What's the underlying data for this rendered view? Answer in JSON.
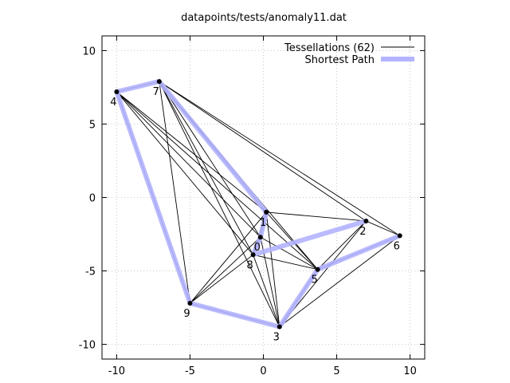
{
  "chart_data": {
    "type": "line",
    "title": "datapoints/tests/anomaly11.dat",
    "xlabel": "",
    "ylabel": "",
    "xlim": [
      -11,
      11
    ],
    "ylim": [
      -11,
      11
    ],
    "x_ticks": [
      -10,
      -5,
      0,
      5,
      10
    ],
    "y_ticks": [
      -10,
      -5,
      0,
      5,
      10
    ],
    "grid": true,
    "legend_position": "top-right",
    "points": [
      {
        "label": "0",
        "x": -0.2,
        "y": -2.7
      },
      {
        "label": "1",
        "x": 0.2,
        "y": -1.0
      },
      {
        "label": "2",
        "x": 7.0,
        "y": -1.6
      },
      {
        "label": "3",
        "x": 1.1,
        "y": -8.8
      },
      {
        "label": "4",
        "x": -10.0,
        "y": 7.2
      },
      {
        "label": "5",
        "x": 3.7,
        "y": -4.9
      },
      {
        "label": "6",
        "x": 9.3,
        "y": -2.6
      },
      {
        "label": "7",
        "x": -7.1,
        "y": 7.9
      },
      {
        "label": "8",
        "x": -0.7,
        "y": -3.9
      },
      {
        "label": "9",
        "x": -5.0,
        "y": -7.2
      }
    ],
    "series": [
      {
        "name": "Tessellations (62)",
        "color": "#000000",
        "edges": [
          [
            4,
            7
          ],
          [
            4,
            9
          ],
          [
            4,
            1
          ],
          [
            4,
            5
          ],
          [
            4,
            8
          ],
          [
            4,
            0
          ],
          [
            7,
            9
          ],
          [
            7,
            1
          ],
          [
            7,
            0
          ],
          [
            7,
            8
          ],
          [
            7,
            5
          ],
          [
            7,
            3
          ],
          [
            7,
            2
          ],
          [
            7,
            6
          ],
          [
            1,
            2
          ],
          [
            1,
            5
          ],
          [
            1,
            9
          ],
          [
            1,
            3
          ],
          [
            1,
            0
          ],
          [
            1,
            8
          ],
          [
            2,
            6
          ],
          [
            2,
            5
          ],
          [
            2,
            3
          ],
          [
            6,
            5
          ],
          [
            6,
            3
          ],
          [
            5,
            3
          ],
          [
            5,
            0
          ],
          [
            5,
            8
          ],
          [
            0,
            8
          ],
          [
            0,
            9
          ],
          [
            0,
            3
          ],
          [
            8,
            9
          ],
          [
            8,
            3
          ],
          [
            9,
            3
          ]
        ]
      },
      {
        "name": "Shortest Path",
        "color": "#b3b3ff",
        "path": [
          2,
          8,
          0,
          1,
          7,
          4,
          9,
          3,
          5,
          6
        ]
      }
    ]
  }
}
